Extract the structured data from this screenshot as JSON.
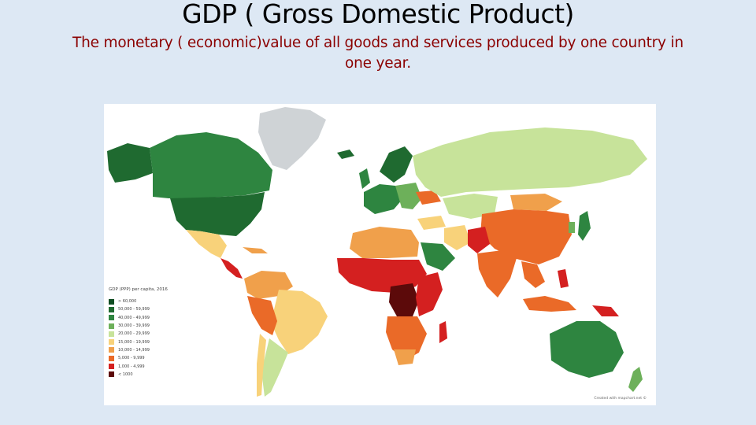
{
  "slide": {
    "title": "GDP ( Gross Domestic Product)",
    "subtitle": "The monetary ( economic)value of all goods and services produced by one country in one year."
  },
  "map": {
    "legend_title": "GDP (PPP) per capita, 2016",
    "legend": [
      {
        "label": "> 60,000",
        "color": "#0f4d22"
      },
      {
        "label": "50,000 - 59,999",
        "color": "#1f6a30"
      },
      {
        "label": "40,000 - 49,999",
        "color": "#2e8540"
      },
      {
        "label": "30,000 - 39,999",
        "color": "#6db05a"
      },
      {
        "label": "20,000 - 29,999",
        "color": "#c7e39a"
      },
      {
        "label": "15,000 - 19,999",
        "color": "#f8d27a"
      },
      {
        "label": "10,000 - 14,999",
        "color": "#f0a04b"
      },
      {
        "label": "5,000 - 9,999",
        "color": "#ea6a28"
      },
      {
        "label": "1,000 - 4,999",
        "color": "#d42020"
      },
      {
        "label": "< 1000",
        "color": "#5c0a0a"
      }
    ],
    "credit": "Created with mapchart.net ©",
    "colors": {
      "no_data": "#cfd3d6",
      "ocean": "#ffffff"
    }
  }
}
